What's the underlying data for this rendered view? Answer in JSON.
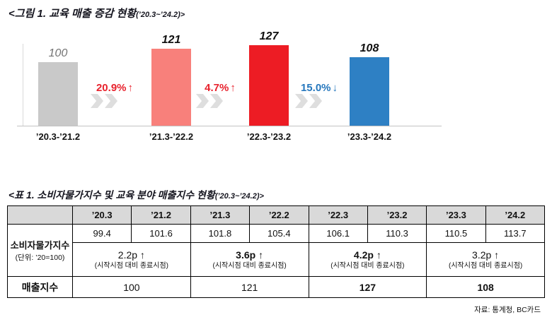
{
  "figure_title": {
    "main": "<그림 1. 교육 매출 증감 현황",
    "period": "(’20.3~’24.2)>"
  },
  "chart_data": {
    "type": "bar",
    "title": "교육 매출 증감 현황 (’20.3~’24.2)",
    "categories": [
      "’20.3-’21.2",
      "’21.3-’22.2",
      "’22.3-’23.2",
      "’23.3-’24.2"
    ],
    "values": [
      100,
      121,
      127,
      108
    ],
    "value_labels": [
      "100",
      "121",
      "127",
      "108"
    ],
    "bar_colors": [
      "#c9c9c9",
      "#f8807b",
      "#ed1c24",
      "#2e80c4"
    ],
    "changes": [
      {
        "label": "20.9%",
        "arrow": "↑",
        "direction": "up",
        "color": "#e8222d"
      },
      {
        "label": "4.7%",
        "arrow": "↑",
        "direction": "up",
        "color": "#e8222d"
      },
      {
        "label": "15.0%",
        "arrow": "↓",
        "direction": "down",
        "color": "#2577bd"
      }
    ],
    "ylim": [
      0,
      140
    ],
    "grid": false,
    "legend": false,
    "xlabel": "",
    "ylabel": ""
  },
  "table_title": {
    "main": "<표 1. 소비자물가지수 및 교육 분야 매출지수 현황",
    "period": "(’20.3~’24.2)>"
  },
  "table": {
    "col_headers": [
      "’20.3",
      "’21.2",
      "’21.3",
      "’22.2",
      "’22.3",
      "’23.2",
      "’23.3",
      "’24.2"
    ],
    "cpi": {
      "label": "소비자물가지수",
      "unit": "(단위: ’20=100)",
      "values": [
        "99.4",
        "101.6",
        "101.8",
        "105.4",
        "106.1",
        "110.3",
        "110.5",
        "113.7"
      ]
    },
    "deltas": [
      {
        "value": "2.2p ↑",
        "note": "(시작시점 대비 종료시점)",
        "bold": false
      },
      {
        "value": "3.6p ↑",
        "note": "(시작시점 대비 종료시점)",
        "bold": true
      },
      {
        "value": "4.2p ↑",
        "note": "(시작시점 대비 종료시점)",
        "bold": true
      },
      {
        "value": "3.2p ↑",
        "note": "(시작시점 대비 종료시점)",
        "bold": false
      }
    ],
    "sales": {
      "label": "매출지수",
      "values": [
        {
          "text": "100",
          "bold": false
        },
        {
          "text": "121",
          "bold": false
        },
        {
          "text": "127",
          "bold": true
        },
        {
          "text": "108",
          "bold": true
        }
      ]
    }
  },
  "source": "자료: 통계청, BC카드"
}
